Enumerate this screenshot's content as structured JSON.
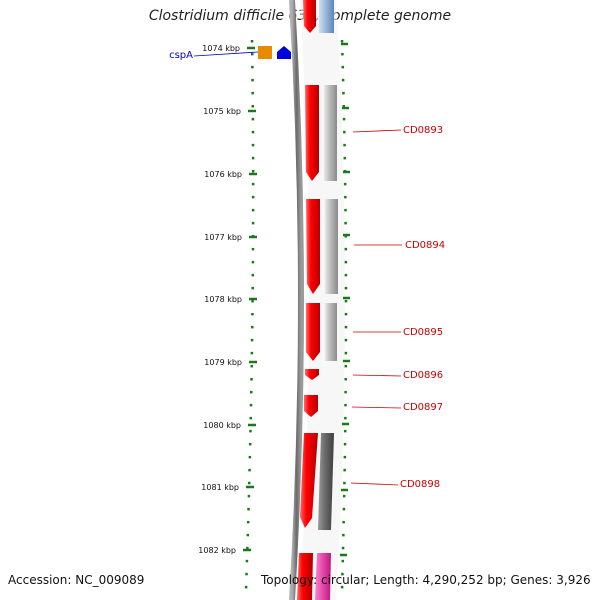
{
  "title": "Clostridium difficile 630, complete genome",
  "footer": {
    "accession": "Accession: NC_009089",
    "topology": "Topology: circular; Length: 4,290,252 bp; Genes: 3,926"
  },
  "colors": {
    "scale": "#1a7a1a",
    "gene_label": "#cc0000",
    "cspA_label": "#0000cc",
    "cds_forward": "#ee0000",
    "blast_hit": "#bdbdbd",
    "blast_hit_dark": "#6e6e6e",
    "orange_feature": "#e88a00",
    "blue_feature": "#0000dd",
    "magenta_feature": "#e23aa4"
  },
  "scale_labels": [
    "1074 kbp",
    "1075 kbp",
    "1076 kbp",
    "1077 kbp",
    "1078 kbp",
    "1079 kbp",
    "1080 kbp",
    "1081 kbp",
    "1082 kbp"
  ],
  "genes": [
    {
      "name": "CD0893"
    },
    {
      "name": "CD0894"
    },
    {
      "name": "CD0895"
    },
    {
      "name": "CD0896"
    },
    {
      "name": "CD0897"
    },
    {
      "name": "CD0898"
    }
  ],
  "left_feature": {
    "name": "cspA"
  }
}
